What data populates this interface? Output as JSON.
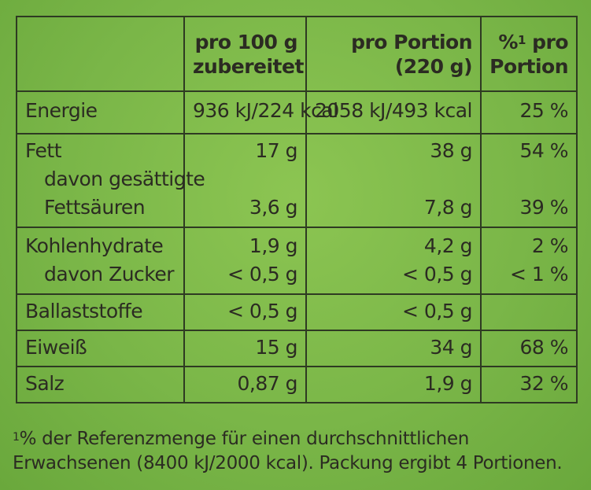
{
  "header": {
    "col1": "",
    "col2_line1": "pro 100 g",
    "col2_line2": "zubereitet",
    "col3_line1": "pro Portion",
    "col3_line2": "(220 g)",
    "col4_pre": "%",
    "col4_sup": "1",
    "col4_line1_rest": " pro",
    "col4_line2": "Portion"
  },
  "rows": {
    "energie": {
      "label": "Energie",
      "per100": "936 kJ/224 kcal",
      "portion": "2058 kJ/493 kcal",
      "pct": "25 %"
    },
    "fett": {
      "label": "Fett",
      "per100": "17 g",
      "portion": "38 g",
      "pct": "54 %"
    },
    "fett_sub": {
      "label_line1": "davon gesättigte",
      "label_line2": "Fettsäuren",
      "per100": "3,6 g",
      "portion": "7,8 g",
      "pct": "39 %"
    },
    "kh": {
      "label": "Kohlenhydrate",
      "per100": "1,9 g",
      "portion": "4,2 g",
      "pct": "2 %"
    },
    "zucker": {
      "label": "davon Zucker",
      "per100": "< 0,5 g",
      "portion": "< 0,5 g",
      "pct": "< 1 %"
    },
    "ballast": {
      "label": "Ballaststoffe",
      "per100": "< 0,5 g",
      "portion": "< 0,5 g",
      "pct": ""
    },
    "eiweiss": {
      "label": "Eiweiß",
      "per100": "15 g",
      "portion": "34 g",
      "pct": "68 %"
    },
    "salz": {
      "label": "Salz",
      "per100": "0,87 g",
      "portion": "1,9 g",
      "pct": "32 %"
    }
  },
  "footnote": {
    "sup": "1",
    "line1": "% der Referenzmenge für einen durchschnittlichen",
    "line2": "Erwachsenen (8400 kJ/2000 kcal). Packung ergibt 4 Portionen."
  },
  "colors": {
    "background": "#7ab648",
    "text": "#2b2b22",
    "border": "#2e3a22"
  }
}
